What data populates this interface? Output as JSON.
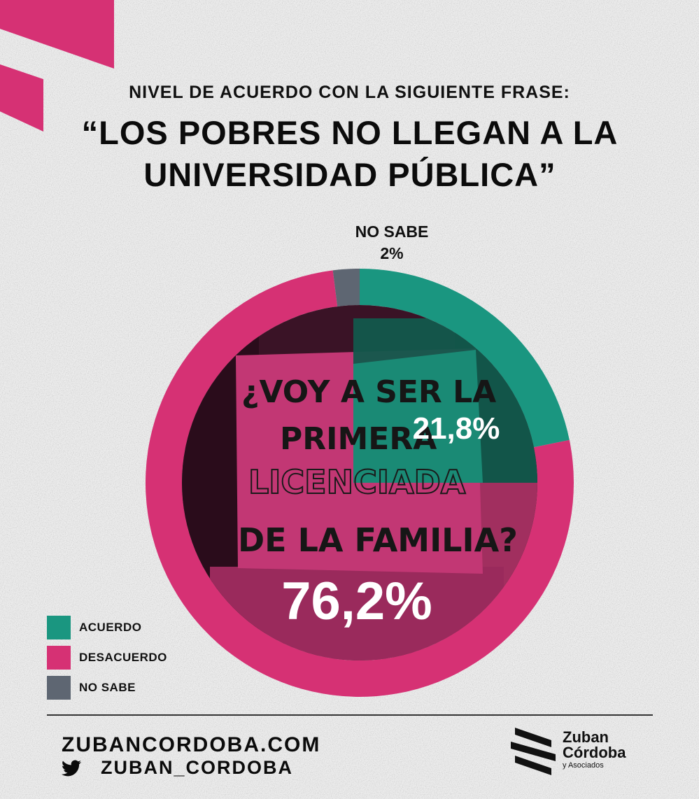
{
  "header": {
    "subtitle": "NIVEL DE ACUERDO CON LA SIGUIENTE FRASE:",
    "title_line1": "“LOS POBRES NO LLEGAN A LA",
    "title_line2": "UNIVERSIDAD PÚBLICA”"
  },
  "photo_sign": {
    "line1": "¿VOY A SER LA",
    "line2": "PRIMERA",
    "line3": "LICENCIADA",
    "line4": "DE LA FAMILIA?"
  },
  "chart_data": {
    "type": "pie",
    "categories": [
      "ACUERDO",
      "DESACUERDO",
      "NO SABE"
    ],
    "values": [
      21.8,
      76.2,
      2
    ],
    "value_labels": [
      "21,8%",
      "76,2%",
      "2%"
    ],
    "colors": [
      "#1a9680",
      "#d63174",
      "#5e6672"
    ],
    "legend_position": "bottom-left",
    "annotations": {
      "no_sabe_label": "NO SABE",
      "no_sabe_value": "2%"
    }
  },
  "legend": [
    {
      "label": "ACUERDO",
      "color": "#1a9680"
    },
    {
      "label": "DESACUERDO",
      "color": "#d63174"
    },
    {
      "label": "NO SABE",
      "color": "#5e6672"
    }
  ],
  "footer": {
    "website": "ZUBANCORDOBA.COM",
    "twitter_handle": "ZUBAN_CORDOBA",
    "twitter_icon": "twitter-bird-icon",
    "logo_name_line1": "Zuban",
    "logo_name_line2": "Córdoba",
    "logo_sub": "y Asociados"
  }
}
